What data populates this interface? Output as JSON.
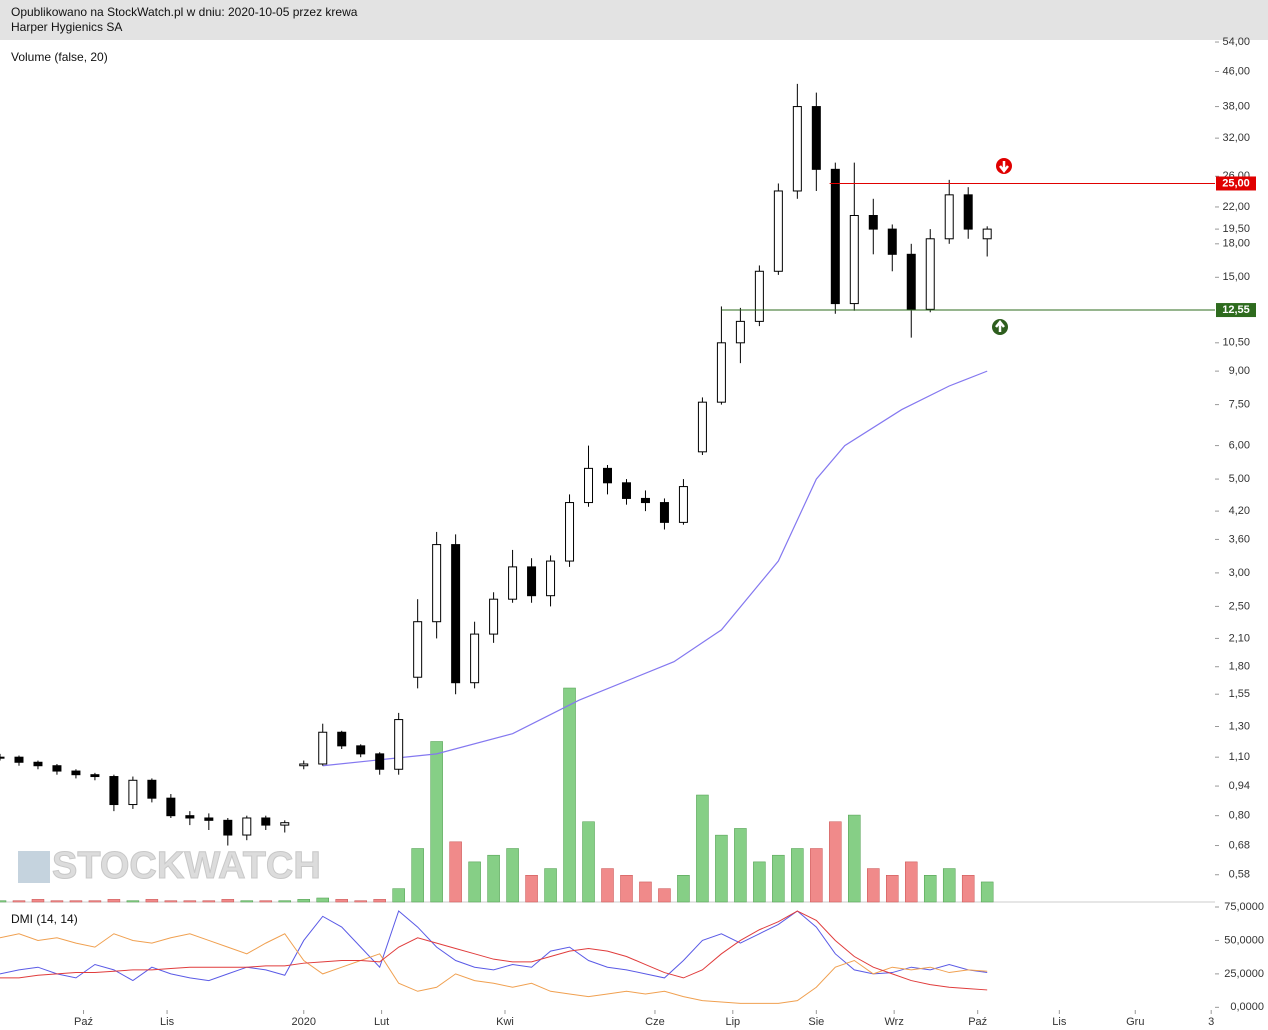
{
  "chart_data": [
    {
      "type": "candlestick",
      "subtitle": "Opublikowano na StockWatch.pl w dniu: 2020-10-05 przez krewa",
      "title": "Harper Hygienics SA",
      "watermark": "STOCKWATCH",
      "x": [
        0,
        1,
        2,
        3,
        4,
        5,
        6,
        7,
        8,
        9,
        10,
        11,
        12,
        13,
        14,
        15,
        16,
        17,
        18,
        19,
        20,
        21,
        22,
        23,
        24,
        25,
        26,
        27,
        28,
        29,
        30,
        31,
        32,
        33,
        34,
        35,
        36,
        37,
        38,
        39,
        40,
        41,
        42,
        43,
        44,
        45,
        46,
        47,
        48,
        49,
        50,
        51,
        52
      ],
      "open": [
        1.1,
        1.1,
        1.07,
        1.05,
        1.02,
        1.0,
        0.99,
        0.85,
        0.97,
        0.88,
        0.8,
        0.79,
        0.78,
        0.72,
        0.79,
        0.76,
        1.05,
        1.06,
        1.26,
        1.17,
        1.12,
        1.03,
        1.7,
        2.3,
        3.5,
        1.65,
        2.15,
        2.6,
        3.1,
        2.65,
        3.2,
        4.4,
        5.3,
        4.9,
        4.5,
        4.4,
        3.95,
        5.8,
        7.6,
        10.5,
        11.8,
        15.5,
        24.0,
        38.0,
        27.0,
        13.0,
        21.0,
        19.5,
        17.0,
        12.6,
        18.5,
        23.5,
        18.5
      ],
      "high": [
        1.12,
        1.11,
        1.08,
        1.06,
        1.03,
        1.01,
        1.0,
        0.99,
        0.98,
        0.9,
        0.82,
        0.81,
        0.79,
        0.8,
        0.8,
        0.78,
        1.08,
        1.32,
        1.27,
        1.18,
        1.13,
        1.4,
        2.6,
        3.75,
        3.7,
        2.3,
        2.7,
        3.4,
        3.25,
        3.3,
        4.6,
        6.0,
        5.4,
        5.0,
        4.7,
        4.5,
        5.0,
        7.8,
        12.8,
        12.7,
        16.0,
        25.0,
        43.0,
        41.0,
        28.0,
        28.0,
        23.0,
        20.0,
        18.0,
        19.5,
        25.5,
        24.5,
        19.8
      ],
      "low": [
        1.08,
        1.05,
        1.03,
        1.0,
        0.98,
        0.97,
        0.82,
        0.83,
        0.86,
        0.79,
        0.76,
        0.74,
        0.68,
        0.7,
        0.74,
        0.73,
        1.03,
        1.05,
        1.15,
        1.1,
        1.0,
        1.0,
        1.6,
        2.1,
        1.55,
        1.6,
        2.05,
        2.55,
        2.55,
        2.5,
        3.1,
        4.3,
        4.6,
        4.35,
        4.2,
        3.8,
        3.9,
        5.7,
        7.5,
        9.4,
        11.5,
        15.2,
        23.0,
        24.0,
        12.3,
        12.5,
        17.0,
        15.5,
        10.8,
        12.4,
        18.0,
        18.5,
        16.8
      ],
      "close": [
        1.1,
        1.07,
        1.05,
        1.02,
        1.0,
        0.99,
        0.85,
        0.97,
        0.88,
        0.8,
        0.79,
        0.78,
        0.72,
        0.79,
        0.76,
        0.77,
        1.06,
        1.26,
        1.17,
        1.12,
        1.03,
        1.35,
        2.3,
        3.5,
        1.65,
        2.15,
        2.6,
        3.1,
        2.65,
        3.2,
        4.4,
        5.3,
        4.9,
        4.5,
        4.4,
        3.95,
        4.8,
        7.6,
        10.5,
        11.8,
        15.5,
        24.0,
        38.0,
        27.0,
        13.0,
        21.0,
        19.5,
        17.0,
        12.6,
        18.5,
        23.5,
        19.5,
        19.5
      ],
      "color": "#000000",
      "volume": {
        "name": "Volume (false, 20)",
        "up_color": "#86cf86",
        "down_color": "#f08a8a",
        "values": [
          1,
          1,
          2,
          1,
          1,
          1,
          2,
          1,
          2,
          1,
          1,
          1,
          2,
          1,
          1,
          1,
          2,
          3,
          2,
          1,
          2,
          10,
          40,
          120,
          45,
          30,
          35,
          40,
          20,
          25,
          160,
          60,
          25,
          20,
          15,
          10,
          20,
          80,
          50,
          55,
          30,
          35,
          40,
          40,
          60,
          65,
          25,
          20,
          30,
          20,
          25,
          20,
          15
        ]
      },
      "ma": {
        "color": "#8478f0",
        "x": [
          17,
          23,
          27,
          30.5,
          35.5,
          38,
          41,
          43,
          44.5,
          47.5,
          50,
          52
        ],
        "values": [
          1.05,
          1.12,
          1.25,
          1.5,
          1.85,
          2.2,
          3.2,
          5.0,
          6.0,
          7.3,
          8.3,
          9.0
        ]
      },
      "levels": [
        {
          "value": 25,
          "label": "25,00",
          "color": "#e00000",
          "from": 43.7
        },
        {
          "value": 12.55,
          "label": "12,55",
          "color": "#2e6b1e",
          "from": 38
        }
      ],
      "log": true,
      "xlim": [
        0,
        64
      ],
      "ylim": [
        0.5,
        54.6
      ],
      "yticks": [
        {
          "value": 0.58,
          "label": "0,58"
        },
        {
          "value": 0.68,
          "label": "0,68"
        },
        {
          "value": 0.8,
          "label": "0,80"
        },
        {
          "value": 0.94,
          "label": "0,94"
        },
        {
          "value": 1.1,
          "label": "1,10"
        },
        {
          "value": 1.3,
          "label": "1,30"
        },
        {
          "value": 1.55,
          "label": "1,55"
        },
        {
          "value": 1.8,
          "label": "1,80"
        },
        {
          "value": 2.1,
          "label": "2,10"
        },
        {
          "value": 2.5,
          "label": "2,50"
        },
        {
          "value": 3,
          "label": "3,00"
        },
        {
          "value": 3.6,
          "label": "3,60"
        },
        {
          "value": 4.2,
          "label": "4,20"
        },
        {
          "value": 5,
          "label": "5,00"
        },
        {
          "value": 6,
          "label": "6,00"
        },
        {
          "value": 7.5,
          "label": "7,50"
        },
        {
          "value": 9,
          "label": "9,00"
        },
        {
          "value": 10.5,
          "label": "10,50"
        },
        {
          "value": 15,
          "label": "15,00"
        },
        {
          "value": 18,
          "label": "18,00"
        },
        {
          "value": 19.5,
          "label": "19,50"
        },
        {
          "value": 22,
          "label": "22,00"
        },
        {
          "value": 26,
          "label": "26,00"
        },
        {
          "value": 32,
          "label": "32,00"
        },
        {
          "value": 38,
          "label": "38,00"
        },
        {
          "value": 46,
          "label": "46,00"
        },
        {
          "value": 54,
          "label": "54,00"
        }
      ]
    },
    {
      "type": "line",
      "title": "DMI (14, 14)",
      "x": [
        0,
        1,
        2,
        3,
        4,
        5,
        6,
        7,
        8,
        9,
        10,
        11,
        12,
        13,
        14,
        15,
        16,
        17,
        18,
        19,
        20,
        21,
        22,
        23,
        24,
        25,
        26,
        27,
        28,
        29,
        30,
        31,
        32,
        33,
        34,
        35,
        36,
        37,
        38,
        39,
        40,
        41,
        42,
        43,
        44,
        45,
        46,
        47,
        48,
        49,
        50,
        51,
        52
      ],
      "series": [
        {
          "color": "#5a5ae6",
          "values": [
            25,
            28,
            30,
            25,
            22,
            32,
            28,
            20,
            30,
            25,
            22,
            20,
            25,
            30,
            28,
            24,
            50,
            68,
            60,
            45,
            30,
            72,
            60,
            45,
            35,
            30,
            28,
            32,
            30,
            42,
            45,
            35,
            30,
            28,
            25,
            22,
            35,
            50,
            55,
            48,
            55,
            62,
            72,
            60,
            40,
            28,
            25,
            26,
            30,
            28,
            32,
            28,
            26
          ]
        },
        {
          "color": "#f0a050",
          "values": [
            52,
            55,
            50,
            52,
            48,
            45,
            55,
            50,
            48,
            52,
            55,
            50,
            45,
            40,
            48,
            55,
            35,
            25,
            30,
            35,
            40,
            18,
            12,
            15,
            25,
            20,
            18,
            15,
            18,
            12,
            10,
            8,
            10,
            12,
            10,
            12,
            8,
            5,
            4,
            3,
            3,
            3,
            5,
            15,
            30,
            35,
            25,
            30,
            28,
            30,
            26,
            28,
            27
          ]
        },
        {
          "color": "#e03c3c",
          "values": [
            22,
            22,
            24,
            25,
            26,
            26,
            27,
            28,
            28,
            29,
            30,
            30,
            30,
            30,
            31,
            31,
            33,
            34,
            35,
            35,
            34,
            45,
            52,
            48,
            44,
            40,
            36,
            34,
            34,
            38,
            42,
            44,
            42,
            38,
            32,
            26,
            22,
            28,
            40,
            50,
            58,
            64,
            72,
            65,
            50,
            38,
            30,
            25,
            20,
            17,
            15,
            14,
            13
          ]
        }
      ],
      "xlim": [
        0,
        64
      ],
      "ylim": [
        -2,
        78
      ],
      "yticks": [
        {
          "value": 0,
          "label": "0,0000"
        },
        {
          "value": 25,
          "label": "25,0000"
        },
        {
          "value": 50,
          "label": "50,0000"
        },
        {
          "value": 75,
          "label": "75,0000"
        }
      ],
      "xticks": [
        {
          "value": 4.4,
          "label": "Paź"
        },
        {
          "value": 8.8,
          "label": "Lis"
        },
        {
          "value": 16,
          "label": "2020"
        },
        {
          "value": 20.1,
          "label": "Lut"
        },
        {
          "value": 26.6,
          "label": "Kwi"
        },
        {
          "value": 34.5,
          "label": "Cze"
        },
        {
          "value": 38.6,
          "label": "Lip"
        },
        {
          "value": 43,
          "label": "Sie"
        },
        {
          "value": 47.1,
          "label": "Wrz"
        },
        {
          "value": 51.5,
          "label": "Paź"
        },
        {
          "value": 55.8,
          "label": "Lis"
        },
        {
          "value": 59.8,
          "label": "Gru"
        },
        {
          "value": 63.8,
          "label": "3"
        }
      ]
    }
  ]
}
